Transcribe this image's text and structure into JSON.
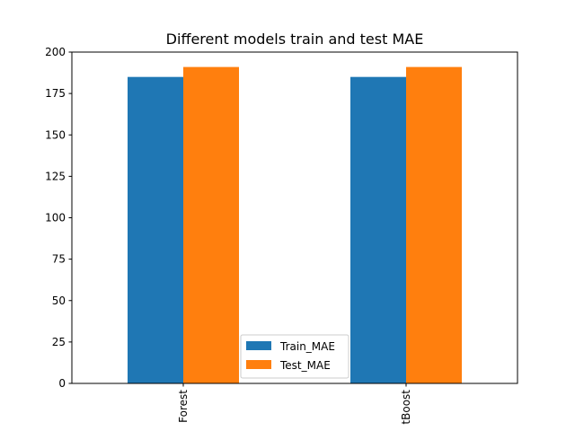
{
  "chart_data": {
    "type": "bar",
    "title": "Different models train and test MAE",
    "xlabel": "",
    "ylabel": "",
    "categories": [
      "Random Forest",
      "XGBoost"
    ],
    "category_labels_visible": [
      "Forest",
      "tBoost"
    ],
    "series": [
      {
        "name": "Train_MAE",
        "color": "#1f77b4",
        "values": [
          185,
          185
        ]
      },
      {
        "name": "Test_MAE",
        "color": "#ff7f0e",
        "values": [
          191,
          191
        ]
      }
    ],
    "ylim": [
      0,
      200
    ],
    "yticks": [
      "0",
      "25",
      "50",
      "75",
      "100",
      "125",
      "150",
      "175",
      "200"
    ],
    "grid": false,
    "legend_position": "bottom-center",
    "xtick_rotation": 90
  }
}
